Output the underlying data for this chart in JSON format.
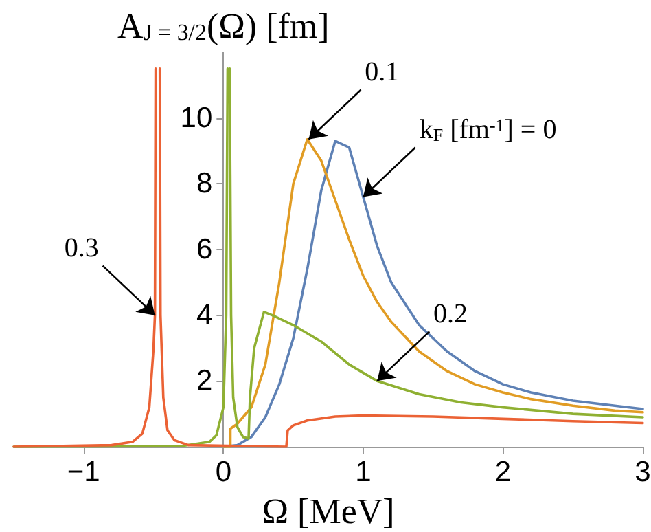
{
  "chart_data": {
    "type": "line",
    "ylabel": "A$_{J = 3/2}$(Ω) [fm]",
    "xlabel": "Ω [MeV]",
    "xlim": [
      -1.5,
      3
    ],
    "xticks": [
      -1,
      0,
      1,
      2,
      3
    ],
    "ylim": [
      0,
      12
    ],
    "yticks": [
      2,
      4,
      6,
      8,
      10
    ],
    "grid": false,
    "marker": "none",
    "line_style": "solid",
    "series": [
      {
        "color": "#5e81b5",
        "x": [
          0.0,
          0.1,
          0.2,
          0.3,
          0.4,
          0.5,
          0.6,
          0.7,
          0.8,
          0.9,
          1.0,
          1.1,
          1.2,
          1.4,
          1.6,
          1.8,
          2.0,
          2.2,
          2.5,
          2.8,
          3.0
        ],
        "values": [
          0,
          0.05,
          0.3,
          0.9,
          1.9,
          3.3,
          5.4,
          7.8,
          9.3,
          9.1,
          7.6,
          6.1,
          5.0,
          3.7,
          2.9,
          2.3,
          1.9,
          1.65,
          1.4,
          1.25,
          1.15
        ]
      },
      {
        "color": "#e19c24",
        "x": [
          0.0,
          0.05,
          0.05,
          0.1,
          0.2,
          0.3,
          0.4,
          0.5,
          0.6,
          0.7,
          0.8,
          0.9,
          1.0,
          1.1,
          1.2,
          1.4,
          1.6,
          1.8,
          2.0,
          2.2,
          2.5,
          2.8,
          3.0
        ],
        "values": [
          0,
          0,
          0.55,
          0.7,
          1.2,
          2.5,
          5.0,
          8.0,
          9.35,
          8.7,
          7.5,
          6.3,
          5.2,
          4.4,
          3.8,
          2.9,
          2.3,
          1.9,
          1.65,
          1.45,
          1.25,
          1.1,
          1.05
        ]
      },
      {
        "color": "#8fb032",
        "x": [
          -1.5,
          -0.3,
          -0.1,
          -0.05,
          0,
          0.02,
          0.03,
          0.0375,
          0.045,
          0.055,
          0.07,
          0.1,
          0.14,
          0.18,
          0.19,
          0.22,
          0.29,
          0.35,
          0.5,
          0.7,
          0.9,
          1.1,
          1.4,
          1.7,
          2.0,
          2.5,
          3.0
        ],
        "values": [
          0,
          0.02,
          0.15,
          0.35,
          1.2,
          4,
          11.5,
          null,
          11.5,
          4,
          1.5,
          0.6,
          0.3,
          0.25,
          1.5,
          3.0,
          4.1,
          4.0,
          3.7,
          3.2,
          2.5,
          2.0,
          1.6,
          1.35,
          1.2,
          1.0,
          0.9
        ]
      },
      {
        "color": "#eb6235",
        "x": [
          -1.5,
          -0.8,
          -0.65,
          -0.58,
          -0.53,
          -0.5,
          -0.49,
          -0.485,
          -0.47,
          -0.455,
          -0.45,
          -0.43,
          -0.4,
          -0.35,
          -0.25,
          0.45,
          0.46,
          0.5,
          0.6,
          0.8,
          1.0,
          1.5,
          2.0,
          2.5,
          3.0
        ],
        "values": [
          0,
          0.05,
          0.15,
          0.4,
          1.2,
          3,
          4,
          11.5,
          null,
          11.5,
          4,
          1.5,
          0.5,
          0.2,
          0.05,
          0,
          0.5,
          0.65,
          0.8,
          0.92,
          0.95,
          0.92,
          0.85,
          0.78,
          0.72
        ]
      }
    ],
    "annotations": [
      {
        "text": "0.1",
        "x": 0.61,
        "y": 9.35
      },
      {
        "text": "k$_{F}$ [fm$^{-1}$] = 0",
        "x": 1.0,
        "y": 7.6
      },
      {
        "text": "0.2",
        "x": 1.1,
        "y": 2.0
      },
      {
        "text": "0.3",
        "x": -0.49,
        "y": 4
      }
    ]
  }
}
